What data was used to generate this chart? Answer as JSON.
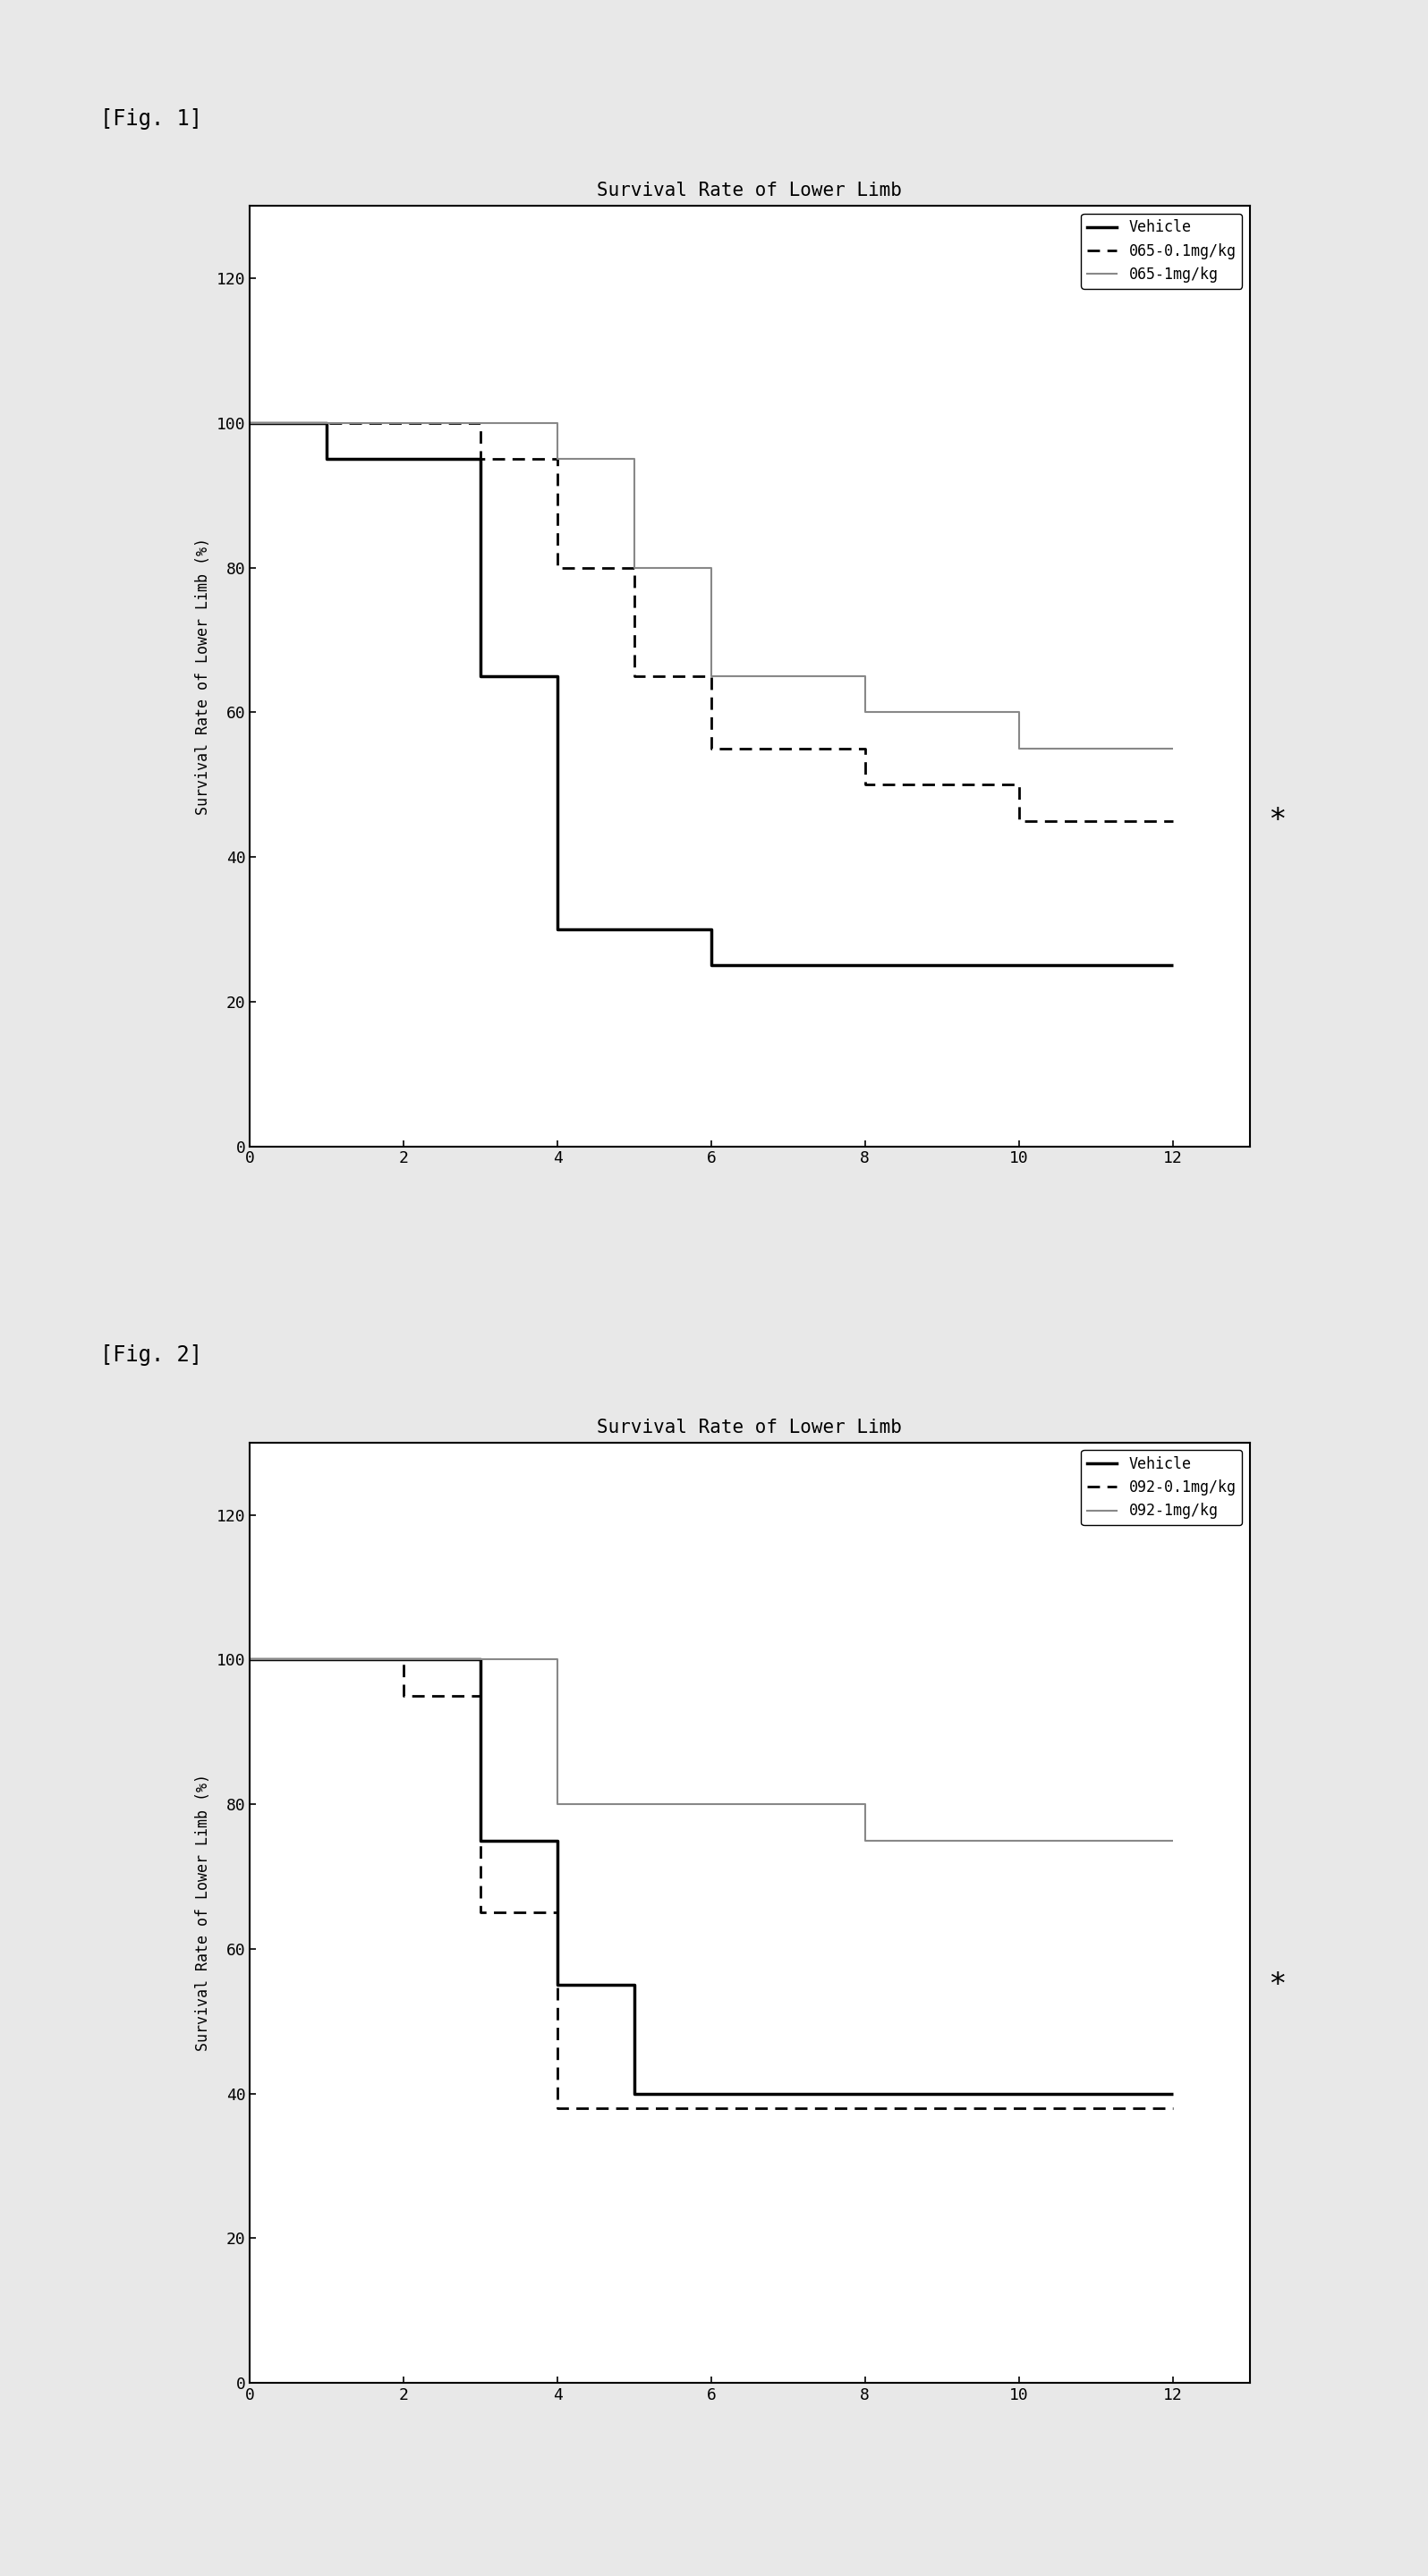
{
  "fig1": {
    "title": "Survival Rate of Lower Limb",
    "ylabel": "Survival Rate of Lower Limb (%)",
    "xlim": [
      0,
      13
    ],
    "ylim": [
      0,
      130
    ],
    "xticks": [
      0,
      2,
      4,
      6,
      8,
      10,
      12
    ],
    "yticks": [
      0,
      20,
      40,
      60,
      80,
      100,
      120
    ],
    "series": [
      {
        "label": "Vehicle",
        "linestyle": "solid",
        "linewidth": 2.5,
        "color": "#000000",
        "x": [
          0,
          1,
          1,
          3,
          3,
          4,
          4,
          5,
          5,
          6,
          6,
          12
        ],
        "y": [
          100,
          100,
          95,
          95,
          65,
          65,
          30,
          30,
          30,
          30,
          25,
          25
        ]
      },
      {
        "label": "065-0.1mg/kg",
        "linestyle": "dashed",
        "linewidth": 2.0,
        "color": "#000000",
        "x": [
          0,
          3,
          3,
          4,
          4,
          5,
          5,
          6,
          6,
          8,
          8,
          10,
          10,
          12
        ],
        "y": [
          100,
          100,
          95,
          95,
          80,
          80,
          65,
          65,
          55,
          55,
          50,
          50,
          45,
          45
        ]
      },
      {
        "label": "065-1mg/kg",
        "linestyle": "solid",
        "linewidth": 1.5,
        "color": "#888888",
        "x": [
          0,
          3,
          3,
          4,
          4,
          5,
          5,
          6,
          6,
          8,
          8,
          10,
          10,
          12
        ],
        "y": [
          100,
          100,
          100,
          100,
          95,
          95,
          80,
          80,
          65,
          65,
          60,
          60,
          55,
          55
        ]
      }
    ],
    "star_x": 12.7,
    "star_y": 45,
    "fig_label": "[Fig. 1]"
  },
  "fig2": {
    "title": "Survival Rate of Lower Limb",
    "ylabel": "Survival Rate of Lower Limb (%)",
    "xlim": [
      0,
      13
    ],
    "ylim": [
      0,
      130
    ],
    "xticks": [
      0,
      2,
      4,
      6,
      8,
      10,
      12
    ],
    "yticks": [
      0,
      20,
      40,
      60,
      80,
      100,
      120
    ],
    "series": [
      {
        "label": "Vehicle",
        "linestyle": "solid",
        "linewidth": 2.5,
        "color": "#000000",
        "x": [
          0,
          3,
          3,
          4,
          4,
          5,
          5,
          6,
          6,
          12
        ],
        "y": [
          100,
          100,
          75,
          75,
          55,
          55,
          40,
          40,
          40,
          40
        ]
      },
      {
        "label": "092-0.1mg/kg",
        "linestyle": "dashed",
        "linewidth": 2.0,
        "color": "#000000",
        "x": [
          0,
          2,
          2,
          3,
          3,
          4,
          4,
          12
        ],
        "y": [
          100,
          100,
          95,
          95,
          65,
          65,
          38,
          38
        ]
      },
      {
        "label": "092-1mg/kg",
        "linestyle": "solid",
        "linewidth": 1.5,
        "color": "#888888",
        "x": [
          0,
          3,
          3,
          4,
          4,
          5,
          5,
          8,
          8,
          12
        ],
        "y": [
          100,
          100,
          100,
          100,
          80,
          80,
          80,
          80,
          75,
          75
        ]
      }
    ],
    "star_x": 12.7,
    "star_y": 55,
    "fig_label": "[Fig. 2]"
  },
  "background_color": "#ffffff",
  "page_background": "#e8e8e8",
  "font_family": "monospace",
  "title_fontsize": 15,
  "label_fontsize": 12,
  "tick_fontsize": 13,
  "legend_fontsize": 12,
  "fig_label_fontsize": 17
}
